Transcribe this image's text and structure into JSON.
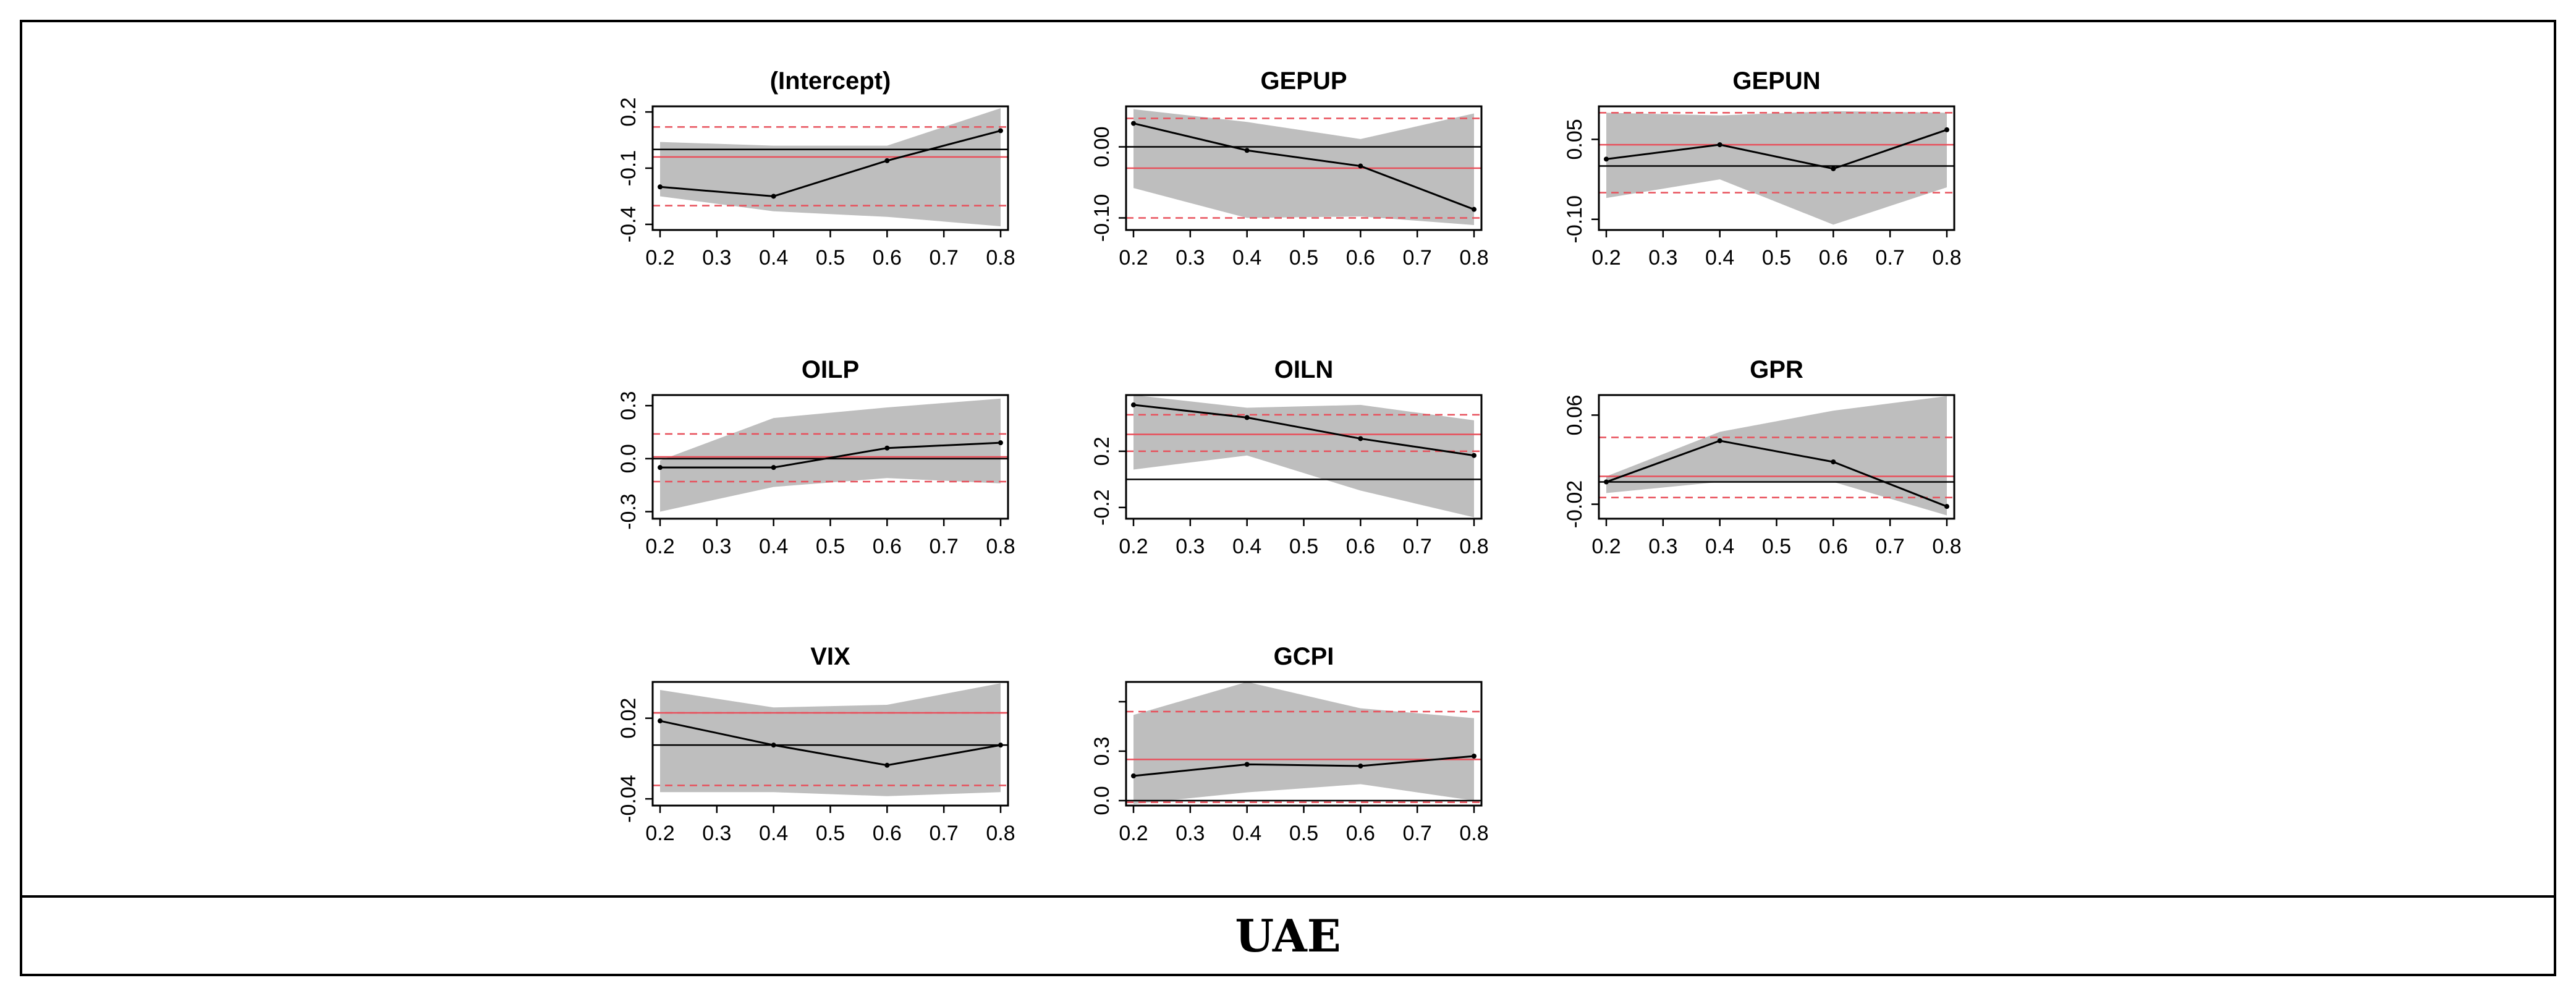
{
  "caption": "UAE",
  "colors": {
    "band": "#bebebe",
    "line": "#000000",
    "ols": "#e8505b",
    "zero": "#000000",
    "frame": "#000000"
  },
  "chart_data": [
    {
      "type": "line",
      "title": "(Intercept)",
      "x": [
        0.2,
        0.4,
        0.6,
        0.8
      ],
      "xticks": [
        "0.2",
        "0.3",
        "0.4",
        "0.5",
        "0.6",
        "0.7",
        "0.8"
      ],
      "ylim": [
        -0.43,
        0.23
      ],
      "yticks": [
        0.2,
        -0.1,
        -0.4
      ],
      "ytick_labels": [
        "0.2",
        "-0.1",
        "-0.4"
      ],
      "y": [
        -0.2,
        -0.25,
        -0.06,
        0.1
      ],
      "lower": [
        -0.25,
        -0.33,
        -0.36,
        -0.41
      ],
      "upper": [
        0.04,
        0.02,
        0.02,
        0.22
      ],
      "ols": -0.04,
      "ols_lo": -0.3,
      "ols_hi": 0.12
    },
    {
      "type": "line",
      "title": "GEPUP",
      "x": [
        0.2,
        0.4,
        0.6,
        0.8
      ],
      "xticks": [
        "0.2",
        "0.3",
        "0.4",
        "0.5",
        "0.6",
        "0.7",
        "0.8"
      ],
      "ylim": [
        -0.117,
        0.057
      ],
      "yticks": [
        0.0,
        -0.1
      ],
      "ytick_labels": [
        "0.00",
        "-0.10"
      ],
      "y": [
        0.033,
        -0.005,
        -0.027,
        -0.088
      ],
      "lower": [
        -0.058,
        -0.1,
        -0.098,
        -0.11
      ],
      "upper": [
        0.053,
        0.035,
        0.011,
        0.047
      ],
      "ols": -0.03,
      "ols_lo": -0.1,
      "ols_hi": 0.04
    },
    {
      "type": "line",
      "title": "GEPUN",
      "x": [
        0.2,
        0.4,
        0.6,
        0.8
      ],
      "xticks": [
        "0.2",
        "0.3",
        "0.4",
        "0.5",
        "0.6",
        "0.7",
        "0.8"
      ],
      "ylim": [
        -0.12,
        0.112
      ],
      "yticks": [
        0.05,
        -0.1
      ],
      "ytick_labels": [
        "0.05",
        "-0.10"
      ],
      "y": [
        0.013,
        0.04,
        -0.005,
        0.068
      ],
      "lower": [
        -0.06,
        -0.025,
        -0.11,
        -0.04
      ],
      "upper": [
        0.1,
        0.095,
        0.103,
        0.1
      ],
      "ols": 0.04,
      "ols_lo": -0.05,
      "ols_hi": 0.1
    },
    {
      "type": "line",
      "title": "OILP",
      "x": [
        0.2,
        0.4,
        0.6,
        0.8
      ],
      "xticks": [
        "0.2",
        "0.3",
        "0.4",
        "0.5",
        "0.6",
        "0.7",
        "0.8"
      ],
      "ylim": [
        -0.34,
        0.36
      ],
      "yticks": [
        0.3,
        0.0,
        -0.3
      ],
      "ytick_labels": [
        "0.3",
        "0.0",
        "-0.3"
      ],
      "y": [
        -0.05,
        -0.05,
        0.06,
        0.09
      ],
      "lower": [
        -0.3,
        -0.16,
        -0.11,
        -0.14
      ],
      "upper": [
        -0.01,
        0.23,
        0.29,
        0.34
      ],
      "ols": 0.01,
      "ols_lo": -0.13,
      "ols_hi": 0.14
    },
    {
      "type": "line",
      "title": "OILN",
      "x": [
        0.2,
        0.4,
        0.6,
        0.8
      ],
      "xticks": [
        "0.2",
        "0.3",
        "0.4",
        "0.5",
        "0.6",
        "0.7",
        "0.8"
      ],
      "ylim": [
        -0.28,
        0.6
      ],
      "yticks": [
        0.2,
        -0.2
      ],
      "ytick_labels": [
        "0.2",
        "-0.2"
      ],
      "y": [
        0.53,
        0.44,
        0.29,
        0.17
      ],
      "lower": [
        0.07,
        0.17,
        -0.08,
        -0.27
      ],
      "upper": [
        0.6,
        0.51,
        0.53,
        0.42
      ],
      "ols": 0.32,
      "ols_lo": 0.2,
      "ols_hi": 0.46
    },
    {
      "type": "line",
      "title": "GPR",
      "x": [
        0.2,
        0.4,
        0.6,
        0.8
      ],
      "xticks": [
        "0.2",
        "0.3",
        "0.4",
        "0.5",
        "0.6",
        "0.7",
        "0.8"
      ],
      "ylim": [
        -0.033,
        0.078
      ],
      "yticks": [
        0.06,
        -0.02
      ],
      "ytick_labels": [
        "0.06",
        "-0.02"
      ],
      "y": [
        0.0,
        0.037,
        0.018,
        -0.022
      ],
      "lower": [
        -0.01,
        0.0,
        0.0,
        -0.03
      ],
      "upper": [
        0.005,
        0.045,
        0.064,
        0.077
      ],
      "ols": 0.005,
      "ols_lo": -0.014,
      "ols_hi": 0.04
    },
    {
      "type": "line",
      "title": "VIX",
      "x": [
        0.2,
        0.4,
        0.6,
        0.8
      ],
      "xticks": [
        "0.2",
        "0.3",
        "0.4",
        "0.5",
        "0.6",
        "0.7",
        "0.8"
      ],
      "ylim": [
        -0.045,
        0.047
      ],
      "yticks": [
        0.02,
        -0.04
      ],
      "ytick_labels": [
        "0.02",
        "-0.04"
      ],
      "y": [
        0.018,
        0.0,
        -0.015,
        0.0
      ],
      "lower": [
        -0.035,
        -0.035,
        -0.038,
        -0.035
      ],
      "upper": [
        0.041,
        0.028,
        0.03,
        0.046
      ],
      "ols": 0.024,
      "ols_lo": -0.03,
      "ols_hi": 0.024
    },
    {
      "type": "line",
      "title": "GCPI",
      "x": [
        0.2,
        0.4,
        0.6,
        0.8
      ],
      "xticks": [
        "0.2",
        "0.3",
        "0.4",
        "0.5",
        "0.6",
        "0.7",
        "0.8"
      ],
      "ylim": [
        -0.03,
        0.72
      ],
      "yticks": [
        0.6,
        0.3,
        0.0
      ],
      "ytick_labels": [
        "",
        "0.3",
        "0.0"
      ],
      "y": [
        0.15,
        0.22,
        0.21,
        0.27
      ],
      "lower": [
        -0.02,
        0.05,
        0.1,
        0.0
      ],
      "upper": [
        0.52,
        0.72,
        0.56,
        0.5
      ],
      "ols": 0.25,
      "ols_lo": -0.01,
      "ols_hi": 0.54
    }
  ]
}
